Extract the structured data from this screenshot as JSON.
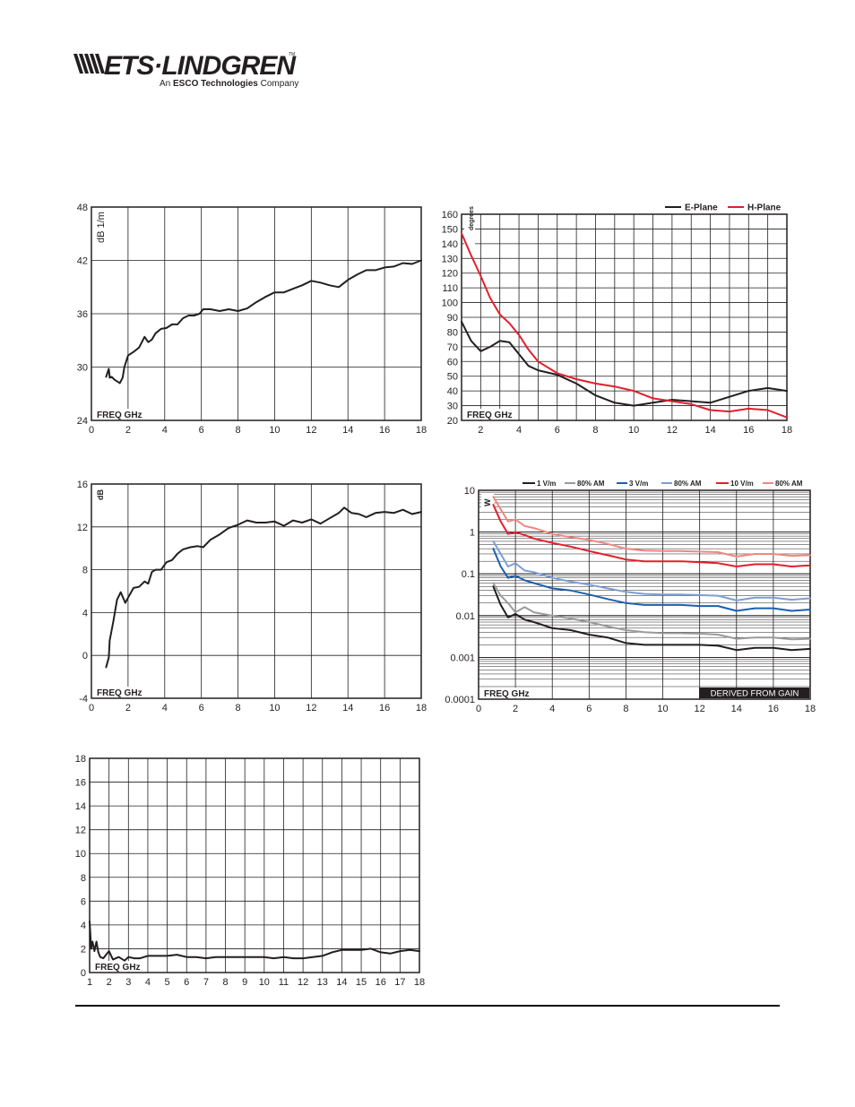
{
  "header": {
    "brand": "ETS·LINDGREN",
    "trademark": "TM",
    "tagline_prefix": "An ",
    "tagline_bold": "ESCO Technologies",
    "tagline_suffix": " Company"
  },
  "colors": {
    "black": "#231f20",
    "grid": "#231f20",
    "red": "#e31e2d",
    "grey": "#9a9a9a",
    "blue": "#1d5fae",
    "light_blue": "#7b9fd4",
    "light_red": "#f0877f"
  },
  "chart_data": [
    {
      "id": "antenna-factor",
      "type": "line",
      "title": "",
      "ylabel": "dB 1/m",
      "xlabel": "FREQ GHz",
      "xlim": [
        0,
        18
      ],
      "ylim": [
        24,
        48
      ],
      "x_ticks": [
        "0",
        "2",
        "4",
        "6",
        "8",
        "10",
        "12",
        "14",
        "16",
        "18"
      ],
      "y_ticks": [
        "24",
        "30",
        "36",
        "42",
        "48"
      ],
      "grid": true,
      "series": [
        {
          "color": "#231f20",
          "x": [
            0.8,
            0.95,
            1.0,
            1.1,
            1.25,
            1.4,
            1.55,
            1.7,
            1.8,
            2.0,
            2.3,
            2.6,
            2.9,
            3.1,
            3.3,
            3.5,
            3.8,
            4.1,
            4.4,
            4.7,
            5.0,
            5.3,
            5.6,
            5.9,
            6.1,
            6.5,
            7.0,
            7.5,
            8.0,
            8.5,
            9.0,
            9.5,
            10.0,
            10.5,
            11.0,
            11.5,
            12.0,
            12.5,
            13.0,
            13.5,
            14.0,
            14.5,
            15.0,
            15.5,
            16.0,
            16.5,
            17.0,
            17.5,
            18.0
          ],
          "y": [
            28.9,
            29.8,
            28.8,
            28.9,
            28.6,
            28.4,
            28.2,
            28.8,
            30.0,
            31.3,
            31.7,
            32.2,
            33.4,
            32.8,
            33.1,
            33.8,
            34.3,
            34.4,
            34.8,
            34.8,
            35.5,
            35.8,
            35.8,
            36.0,
            36.5,
            36.5,
            36.3,
            36.5,
            36.3,
            36.6,
            37.3,
            37.9,
            38.4,
            38.4,
            38.8,
            39.2,
            39.7,
            39.5,
            39.2,
            39.0,
            39.8,
            40.4,
            40.9,
            40.9,
            41.2,
            41.3,
            41.7,
            41.6,
            42.0
          ]
        }
      ]
    },
    {
      "id": "beamwidth",
      "type": "line",
      "title": "",
      "ylabel": "degrees",
      "xlabel": "FREQ GHz",
      "xlim": [
        1,
        18
      ],
      "ylim": [
        20,
        160
      ],
      "x_ticks": [
        "2",
        "4",
        "6",
        "8",
        "10",
        "12",
        "14",
        "16",
        "18"
      ],
      "y_ticks": [
        "20",
        "30",
        "40",
        "50",
        "60",
        "70",
        "80",
        "90",
        "100",
        "110",
        "120",
        "130",
        "140",
        "150",
        "160"
      ],
      "grid": true,
      "legend": [
        "E-Plane",
        "H-Plane"
      ],
      "legend_position": "top-right",
      "series": [
        {
          "name": "E-Plane",
          "color": "#231f20",
          "x": [
            1.0,
            1.5,
            2.0,
            2.5,
            3.0,
            3.5,
            4.0,
            4.5,
            5.0,
            6.0,
            7.0,
            8.0,
            9.0,
            10.0,
            11.0,
            12.0,
            13.0,
            14.0,
            15.0,
            16.0,
            17.0,
            18.0
          ],
          "y": [
            87,
            74,
            67,
            70,
            74,
            73,
            65,
            57,
            54,
            51,
            45,
            37,
            32,
            30,
            32,
            34,
            33,
            32,
            36,
            40,
            42,
            40
          ]
        },
        {
          "name": "H-Plane",
          "color": "#e31e2d",
          "x": [
            1.0,
            1.5,
            2.0,
            2.5,
            3.0,
            3.5,
            4.0,
            4.5,
            5.0,
            6.0,
            7.0,
            8.0,
            9.0,
            10.0,
            11.0,
            12.0,
            13.0,
            14.0,
            15.0,
            16.0,
            17.0,
            18.0
          ],
          "y": [
            147,
            132,
            118,
            103,
            92,
            86,
            78,
            68,
            60,
            52,
            48,
            45,
            43,
            40,
            35,
            33,
            31,
            27,
            26,
            28,
            27,
            22
          ]
        }
      ]
    },
    {
      "id": "gain",
      "type": "line",
      "title": "",
      "ylabel": "dB",
      "xlabel": "FREQ GHz",
      "xlim": [
        0,
        18
      ],
      "ylim": [
        -4,
        16
      ],
      "x_ticks": [
        "0",
        "2",
        "4",
        "6",
        "8",
        "10",
        "12",
        "14",
        "16",
        "18"
      ],
      "y_ticks": [
        "-4",
        "0",
        "4",
        "8",
        "12",
        "16"
      ],
      "grid": true,
      "series": [
        {
          "color": "#231f20",
          "x": [
            0.8,
            0.95,
            1.0,
            1.2,
            1.4,
            1.6,
            1.75,
            1.85,
            2.0,
            2.3,
            2.6,
            2.9,
            3.1,
            3.3,
            3.5,
            3.8,
            4.1,
            4.4,
            4.7,
            5.0,
            5.4,
            5.8,
            6.1,
            6.5,
            7.0,
            7.5,
            8.0,
            8.5,
            9.0,
            9.5,
            10.0,
            10.5,
            11.0,
            11.5,
            12.0,
            12.5,
            13.0,
            13.5,
            13.8,
            14.2,
            14.6,
            15.0,
            15.5,
            16.0,
            16.5,
            17.0,
            17.5,
            18.0
          ],
          "y": [
            -1.1,
            -0.2,
            1.4,
            3.2,
            5.2,
            5.9,
            5.3,
            4.9,
            5.4,
            6.3,
            6.4,
            6.9,
            6.7,
            7.8,
            8.0,
            8.0,
            8.7,
            8.9,
            9.5,
            9.9,
            10.1,
            10.2,
            10.1,
            10.8,
            11.3,
            11.9,
            12.2,
            12.6,
            12.4,
            12.4,
            12.5,
            12.1,
            12.6,
            12.4,
            12.7,
            12.3,
            12.8,
            13.3,
            13.8,
            13.3,
            13.2,
            12.9,
            13.3,
            13.4,
            13.3,
            13.6,
            13.2,
            13.4
          ]
        }
      ]
    },
    {
      "id": "power",
      "type": "line",
      "title": "",
      "ylabel": "W",
      "xlabel": "FREQ GHz",
      "xlim": [
        0,
        18
      ],
      "ylim": [
        0.0001,
        10
      ],
      "yscale": "log",
      "x_ticks": [
        "0",
        "2",
        "4",
        "6",
        "8",
        "10",
        "12",
        "14",
        "16",
        "18"
      ],
      "y_ticks": [
        "0.0001",
        "0.001",
        "0.01",
        "0.1",
        "1",
        "10"
      ],
      "grid": true,
      "annotation": "DERIVED FROM GAIN",
      "legend": [
        "1 V/m",
        "80% AM",
        "3 V/m",
        "80% AM",
        "10 V/m",
        "80% AM"
      ],
      "legend_position": "top",
      "series": [
        {
          "name": "1 V/m",
          "color": "#231f20",
          "x": [
            0.8,
            1.2,
            1.6,
            2.0,
            2.5,
            3.0,
            4.0,
            5.0,
            6.0,
            7.0,
            8.0,
            9.0,
            10.0,
            11.0,
            12.0,
            13.0,
            14.0,
            15.0,
            16.0,
            17.0,
            18.0
          ],
          "y": [
            0.05,
            0.018,
            0.009,
            0.011,
            0.008,
            0.007,
            0.005,
            0.0045,
            0.0035,
            0.003,
            0.0022,
            0.002,
            0.002,
            0.002,
            0.002,
            0.0019,
            0.0015,
            0.0017,
            0.0017,
            0.0015,
            0.0016
          ]
        },
        {
          "name": "80% AM",
          "color": "#9a9a9a",
          "x": [
            0.8,
            1.2,
            1.6,
            2.0,
            2.5,
            3.0,
            4.0,
            5.0,
            6.0,
            7.0,
            8.0,
            9.0,
            10.0,
            11.0,
            12.0,
            13.0,
            14.0,
            15.0,
            16.0,
            17.0,
            18.0
          ],
          "y": [
            0.06,
            0.03,
            0.02,
            0.012,
            0.016,
            0.012,
            0.01,
            0.0085,
            0.007,
            0.0055,
            0.0045,
            0.004,
            0.0038,
            0.0038,
            0.0037,
            0.0035,
            0.0028,
            0.003,
            0.003,
            0.0027,
            0.0028
          ]
        },
        {
          "name": "3 V/m",
          "color": "#1d5fae",
          "x": [
            0.8,
            1.2,
            1.6,
            2.0,
            2.5,
            3.0,
            4.0,
            5.0,
            6.0,
            7.0,
            8.0,
            9.0,
            10.0,
            11.0,
            12.0,
            13.0,
            14.0,
            15.0,
            16.0,
            17.0,
            18.0
          ],
          "y": [
            0.4,
            0.15,
            0.08,
            0.09,
            0.07,
            0.06,
            0.045,
            0.04,
            0.032,
            0.025,
            0.02,
            0.018,
            0.018,
            0.018,
            0.017,
            0.017,
            0.013,
            0.015,
            0.015,
            0.013,
            0.014
          ]
        },
        {
          "name": "80% AM",
          "color": "#7b9fd4",
          "x": [
            0.8,
            1.2,
            1.6,
            2.0,
            2.5,
            3.0,
            4.0,
            5.0,
            6.0,
            7.0,
            8.0,
            9.0,
            10.0,
            11.0,
            12.0,
            13.0,
            14.0,
            15.0,
            16.0,
            17.0,
            18.0
          ],
          "y": [
            0.6,
            0.3,
            0.15,
            0.18,
            0.12,
            0.11,
            0.08,
            0.065,
            0.055,
            0.045,
            0.037,
            0.033,
            0.032,
            0.032,
            0.031,
            0.03,
            0.023,
            0.027,
            0.027,
            0.024,
            0.026
          ]
        },
        {
          "name": "10 V/m",
          "color": "#e31e2d",
          "x": [
            0.8,
            1.2,
            1.6,
            2.0,
            2.5,
            3.0,
            4.0,
            5.0,
            6.0,
            7.0,
            8.0,
            9.0,
            10.0,
            11.0,
            12.0,
            13.0,
            14.0,
            15.0,
            16.0,
            17.0,
            18.0
          ],
          "y": [
            4.5,
            1.8,
            0.9,
            1.0,
            0.85,
            0.7,
            0.55,
            0.45,
            0.35,
            0.28,
            0.22,
            0.2,
            0.2,
            0.2,
            0.19,
            0.18,
            0.15,
            0.17,
            0.17,
            0.15,
            0.16
          ]
        },
        {
          "name": "80% AM",
          "color": "#f0877f",
          "x": [
            0.8,
            1.2,
            1.6,
            2.0,
            2.5,
            3.0,
            4.0,
            5.0,
            6.0,
            7.0,
            8.0,
            9.0,
            10.0,
            11.0,
            12.0,
            13.0,
            14.0,
            15.0,
            16.0,
            17.0,
            18.0
          ],
          "y": [
            7,
            3.5,
            1.8,
            2.0,
            1.4,
            1.25,
            0.9,
            0.75,
            0.65,
            0.52,
            0.4,
            0.36,
            0.35,
            0.35,
            0.34,
            0.33,
            0.26,
            0.3,
            0.3,
            0.27,
            0.28
          ]
        }
      ]
    },
    {
      "id": "vswr",
      "type": "line",
      "title": "",
      "ylabel": "",
      "xlabel": "FREQ GHz",
      "xlim": [
        1,
        18
      ],
      "ylim": [
        0,
        18
      ],
      "x_ticks": [
        "1",
        "2",
        "3",
        "4",
        "5",
        "6",
        "7",
        "8",
        "9",
        "10",
        "11",
        "12",
        "13",
        "14",
        "15",
        "16",
        "17",
        "18"
      ],
      "y_ticks": [
        "0",
        "2",
        "4",
        "6",
        "8",
        "10",
        "12",
        "14",
        "16",
        "18"
      ],
      "grid": true,
      "series": [
        {
          "color": "#231f20",
          "x": [
            1.0,
            1.08,
            1.15,
            1.25,
            1.35,
            1.45,
            1.55,
            1.7,
            1.85,
            2.0,
            2.2,
            2.5,
            2.8,
            3.0,
            3.3,
            3.6,
            4.0,
            4.5,
            5.0,
            5.5,
            6.0,
            6.5,
            7.0,
            7.5,
            8.0,
            8.5,
            9.0,
            9.5,
            10.0,
            10.5,
            11.0,
            11.5,
            12.0,
            12.5,
            13.0,
            13.5,
            14.0,
            14.5,
            15.0,
            15.5,
            16.0,
            16.5,
            17.0,
            17.5,
            18.0
          ],
          "y": [
            4.3,
            2.0,
            2.6,
            1.8,
            2.6,
            1.7,
            1.3,
            1.2,
            1.5,
            1.8,
            1.1,
            1.3,
            1.0,
            1.3,
            1.2,
            1.2,
            1.4,
            1.4,
            1.4,
            1.5,
            1.3,
            1.3,
            1.2,
            1.3,
            1.3,
            1.3,
            1.3,
            1.3,
            1.3,
            1.2,
            1.3,
            1.2,
            1.2,
            1.3,
            1.4,
            1.7,
            1.9,
            1.9,
            1.9,
            2.0,
            1.7,
            1.6,
            1.8,
            1.9,
            1.8
          ]
        }
      ]
    }
  ]
}
